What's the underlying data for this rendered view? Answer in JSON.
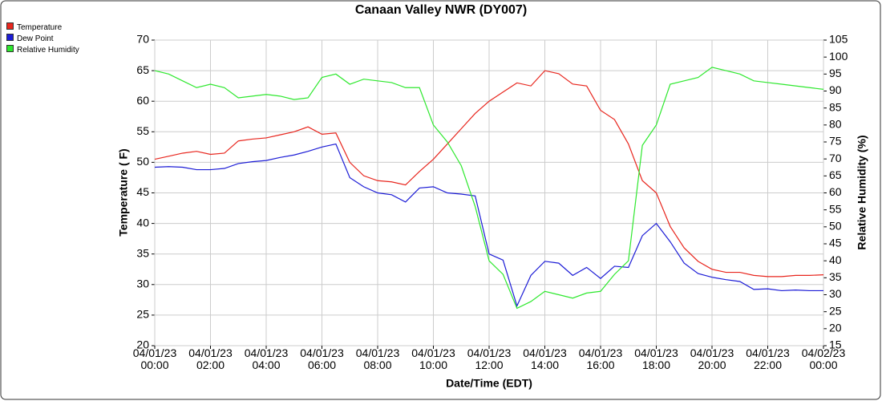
{
  "chart_data": {
    "type": "line",
    "title": "Canaan Valley NWR (DY007)",
    "x_label": "Date/Time (EDT)",
    "y_label": "Temperature ( F)",
    "y2_label": "Relative Humidity (%)",
    "x": [
      "04/01/23 00:00",
      "04/01/23 00:30",
      "04/01/23 01:00",
      "04/01/23 01:30",
      "04/01/23 02:00",
      "04/01/23 02:30",
      "04/01/23 03:00",
      "04/01/23 03:30",
      "04/01/23 04:00",
      "04/01/23 04:30",
      "04/01/23 05:00",
      "04/01/23 05:30",
      "04/01/23 06:00",
      "04/01/23 06:30",
      "04/01/23 07:00",
      "04/01/23 07:30",
      "04/01/23 08:00",
      "04/01/23 08:30",
      "04/01/23 09:00",
      "04/01/23 09:30",
      "04/01/23 10:00",
      "04/01/23 10:30",
      "04/01/23 11:00",
      "04/01/23 11:30",
      "04/01/23 12:00",
      "04/01/23 12:30",
      "04/01/23 13:00",
      "04/01/23 13:30",
      "04/01/23 14:00",
      "04/01/23 14:30",
      "04/01/23 15:00",
      "04/01/23 15:30",
      "04/01/23 16:00",
      "04/01/23 16:30",
      "04/01/23 17:00",
      "04/01/23 17:30",
      "04/01/23 18:00",
      "04/01/23 18:30",
      "04/01/23 19:00",
      "04/01/23 19:30",
      "04/01/23 20:00",
      "04/01/23 20:30",
      "04/01/23 21:00",
      "04/01/23 21:30",
      "04/01/23 22:00",
      "04/01/23 22:30",
      "04/01/23 23:00",
      "04/01/23 23:30",
      "04/02/23 00:00"
    ],
    "series": [
      {
        "name": "Temperature",
        "color": "#e8261e",
        "values": [
          50.5,
          51,
          51.5,
          51.8,
          51.3,
          51.5,
          53.5,
          53.8,
          54,
          54.5,
          55,
          55.8,
          54.6,
          54.8,
          50,
          47.8,
          47,
          46.8,
          46.3,
          48.5,
          50.5,
          53,
          55.5,
          58,
          60,
          61.5,
          63,
          62.5,
          65,
          64.5,
          62.8,
          62.5,
          58.5,
          57,
          53,
          47,
          45,
          39.5,
          36,
          33.8,
          32.5,
          32,
          32,
          31.5,
          31.3,
          31.3,
          31.5,
          31.5,
          31.6
        ]
      },
      {
        "name": "Dew Point",
        "color": "#1c1cd6",
        "values": [
          49.2,
          49.3,
          49.2,
          48.8,
          48.8,
          49,
          49.8,
          50.1,
          50.3,
          50.8,
          51.2,
          51.8,
          52.5,
          53,
          47.5,
          46,
          45,
          44.7,
          43.5,
          45.8,
          46,
          45,
          44.8,
          44.5,
          35,
          34,
          26.5,
          31.5,
          33.8,
          33.5,
          31.5,
          32.8,
          31,
          33,
          32.8,
          38,
          40,
          37,
          33.5,
          31.8,
          31.2,
          30.8,
          30.5,
          29.2,
          29.3,
          29,
          29.1,
          29,
          29
        ]
      },
      {
        "name": "Relative Humidity",
        "color": "#2ee82e",
        "axis": "y2",
        "values": [
          96,
          95,
          93,
          91,
          92,
          91,
          88,
          88.5,
          89,
          88.5,
          87.5,
          88,
          94,
          95,
          92,
          93.5,
          93,
          92.5,
          91,
          91,
          80,
          75,
          68,
          56,
          40,
          36,
          26,
          28,
          31,
          30,
          29,
          30.5,
          31,
          36,
          40,
          74,
          80,
          92,
          93,
          94,
          97,
          96,
          95,
          93,
          92.5,
          92,
          91.5,
          91,
          90.5
        ]
      }
    ],
    "xlim": [
      "04/01/23 00:00",
      "04/02/23 00:00"
    ],
    "xticks": [
      {
        "value": "04/01/23 00:00",
        "label": "04/01/23\n00:00"
      },
      {
        "value": "04/01/23 02:00",
        "label": "04/01/23\n02:00"
      },
      {
        "value": "04/01/23 04:00",
        "label": "04/01/23\n04:00"
      },
      {
        "value": "04/01/23 06:00",
        "label": "04/01/23\n06:00"
      },
      {
        "value": "04/01/23 08:00",
        "label": "04/01/23\n08:00"
      },
      {
        "value": "04/01/23 10:00",
        "label": "04/01/23\n10:00"
      },
      {
        "value": "04/01/23 12:00",
        "label": "04/01/23\n12:00"
      },
      {
        "value": "04/01/23 14:00",
        "label": "04/01/23\n14:00"
      },
      {
        "value": "04/01/23 16:00",
        "label": "04/01/23\n16:00"
      },
      {
        "value": "04/01/23 18:00",
        "label": "04/01/23\n18:00"
      },
      {
        "value": "04/01/23 20:00",
        "label": "04/01/23\n20:00"
      },
      {
        "value": "04/01/23 22:00",
        "label": "04/01/23\n22:00"
      },
      {
        "value": "04/02/23 00:00",
        "label": "04/02/23\n00:00"
      }
    ],
    "ylim": [
      20,
      70
    ],
    "yticks": [
      20,
      25,
      30,
      35,
      40,
      45,
      50,
      55,
      60,
      65,
      70
    ],
    "y2lim": [
      15,
      105
    ],
    "y2ticks": [
      15,
      20,
      25,
      30,
      35,
      40,
      45,
      50,
      55,
      60,
      65,
      70,
      75,
      80,
      85,
      90,
      95,
      100,
      105
    ],
    "grid": true,
    "legend": "top-left"
  }
}
